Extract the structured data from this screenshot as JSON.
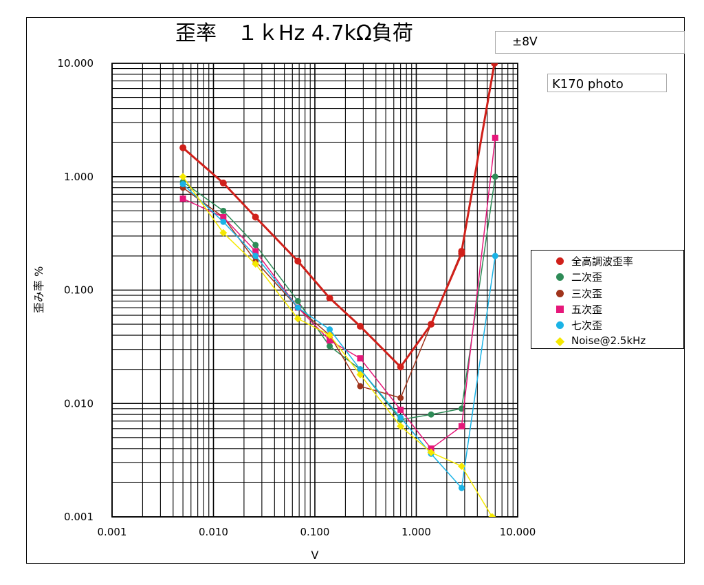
{
  "chart_data": {
    "type": "line",
    "title": "歪率　１ｋHz 4.7kΩ負荷",
    "xlabel": "V",
    "ylabel": "歪み率 %",
    "x_scale": "log",
    "y_scale": "log",
    "xlim": [
      0.001,
      10
    ],
    "ylim": [
      0.001,
      10
    ],
    "x_ticks": [
      "0.001",
      "0.010",
      "0.100",
      "1.000",
      "10.000"
    ],
    "y_ticks": [
      "0.001",
      "0.010",
      "0.100",
      "1.000",
      "10.000"
    ],
    "grid": true,
    "legend_position": "right",
    "annotations": [
      "±8V",
      "K170 photo"
    ],
    "series": [
      {
        "name": "全高調波歪率",
        "color": "#d0201a",
        "marker": "circle",
        "width": 3,
        "points": [
          [
            0.005,
            1.8
          ],
          [
            0.0125,
            0.88
          ],
          [
            0.026,
            0.44
          ],
          [
            0.068,
            0.18
          ],
          [
            0.14,
            0.085
          ],
          [
            0.28,
            0.048
          ],
          [
            0.7,
            0.021
          ],
          [
            1.4,
            0.05
          ],
          [
            2.8,
            0.21
          ],
          [
            2.8,
            0.22
          ],
          [
            5.9,
            10
          ]
        ]
      },
      {
        "name": "二次歪",
        "color": "#2e8b57",
        "marker": "circle",
        "width": 1.5,
        "points": [
          [
            0.005,
            0.9
          ],
          [
            0.0125,
            0.5
          ],
          [
            0.026,
            0.25
          ],
          [
            0.068,
            0.08
          ],
          [
            0.14,
            0.032
          ],
          [
            0.28,
            0.02
          ],
          [
            0.7,
            0.0072
          ],
          [
            1.4,
            0.008
          ],
          [
            2.8,
            0.009
          ],
          [
            6.0,
            1.0
          ]
        ]
      },
      {
        "name": "三次歪",
        "color": "#a0341c",
        "marker": "circle",
        "width": 1.5,
        "points": [
          [
            0.005,
            0.8
          ],
          [
            0.0125,
            0.44
          ],
          [
            0.026,
            0.18
          ],
          [
            0.068,
            0.07
          ],
          [
            0.14,
            0.04
          ],
          [
            0.28,
            0.0142
          ],
          [
            0.7,
            0.0112
          ],
          [
            1.4,
            0.05
          ],
          [
            2.8,
            0.22
          ]
        ]
      },
      {
        "name": "五次歪",
        "color": "#e6177a",
        "marker": "square",
        "width": 1.5,
        "points": [
          [
            0.005,
            0.64
          ],
          [
            0.0125,
            0.44
          ],
          [
            0.026,
            0.22
          ],
          [
            0.068,
            0.07
          ],
          [
            0.14,
            0.036
          ],
          [
            0.28,
            0.025
          ],
          [
            0.7,
            0.0088
          ],
          [
            1.4,
            0.004
          ],
          [
            2.8,
            0.0063
          ],
          [
            6.0,
            2.2
          ]
        ]
      },
      {
        "name": "七次歪",
        "color": "#1ab3e6",
        "marker": "circle",
        "width": 1.5,
        "points": [
          [
            0.005,
            0.86
          ],
          [
            0.0125,
            0.4
          ],
          [
            0.026,
            0.2
          ],
          [
            0.068,
            0.07
          ],
          [
            0.14,
            0.045
          ],
          [
            0.28,
            0.02
          ],
          [
            0.7,
            0.0075
          ],
          [
            1.4,
            0.0036
          ],
          [
            2.8,
            0.0018
          ],
          [
            6.0,
            0.2
          ]
        ]
      },
      {
        "name": "Noise@2.5kHz",
        "color": "#f5e800",
        "marker": "diamond",
        "width": 1.5,
        "points": [
          [
            0.005,
            1.0
          ],
          [
            0.0125,
            0.32
          ],
          [
            0.026,
            0.17
          ],
          [
            0.068,
            0.056
          ],
          [
            0.14,
            0.04
          ],
          [
            0.28,
            0.018
          ],
          [
            0.7,
            0.0063
          ],
          [
            1.4,
            0.0037
          ],
          [
            2.8,
            0.0028
          ],
          [
            5.6,
            0.001
          ]
        ]
      }
    ]
  }
}
